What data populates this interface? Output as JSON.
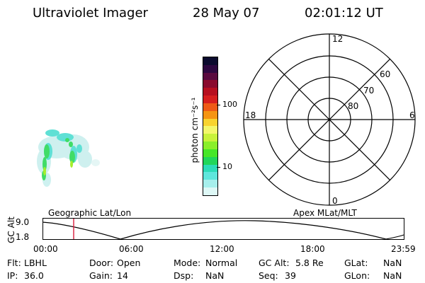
{
  "header": {
    "title": "Ultraviolet Imager",
    "date": "28 May 07",
    "time": "02:01:12 UT"
  },
  "colorbar": {
    "unit_label": "photon cm⁻²s⁻¹",
    "ticks": [
      "100",
      "10"
    ],
    "colors": [
      "#0b0b2e",
      "#2d0840",
      "#5a0a3f",
      "#8a0a2d",
      "#b60f1f",
      "#d61e1e",
      "#ee5a16",
      "#f59412",
      "#f8d32e",
      "#f3f76a",
      "#c8f23a",
      "#8aee2a",
      "#46e628",
      "#20d65a",
      "#2cdcb8",
      "#5ee6dc",
      "#a6efec",
      "#def8f6"
    ]
  },
  "polar": {
    "mlt_labels": {
      "top": "12",
      "bottom": "0",
      "left": "18",
      "right": "6"
    },
    "lat_labels": [
      "60",
      "70",
      "80"
    ]
  },
  "track": {
    "y_label": "GC Alt",
    "y_ticks": [
      "9.0",
      "1.8"
    ],
    "left_title": "Geographic Lat/Lon",
    "right_title": "Apex MLat/MLT",
    "x_ticks": [
      "00:00",
      "06:00",
      "12:00",
      "18:00",
      "23:59"
    ],
    "marker_color": "#d81b3a"
  },
  "info": {
    "flt_label": "Flt:",
    "flt_value": "LBHL",
    "ip_label": "IP:",
    "ip_value": "36.0",
    "door_label": "Door:",
    "door_value": "Open",
    "gain_label": "Gain:",
    "gain_value": "14",
    "mode_label": "Mode:",
    "mode_value": "Normal",
    "dsp_label": "Dsp:",
    "dsp_value": "NaN",
    "gcalt_label": "GC Alt:",
    "gcalt_value": "5.8 Re",
    "seq_label": "Seq:",
    "seq_value": "39",
    "glat_label": "GLat:",
    "glat_value": "NaN",
    "glon_label": "GLon:",
    "glon_value": "NaN"
  }
}
